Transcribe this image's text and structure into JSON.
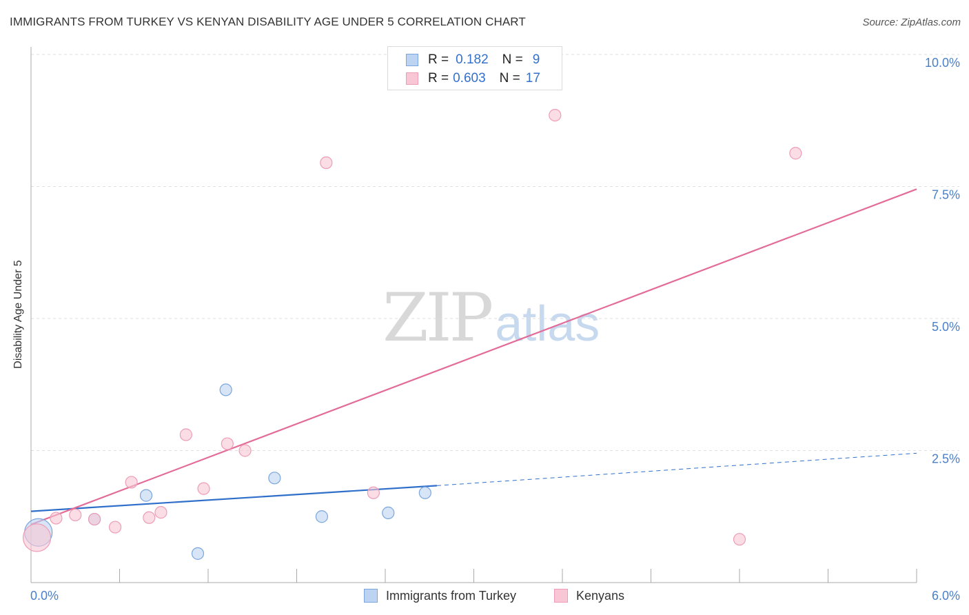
{
  "header": {
    "title": "IMMIGRANTS FROM TURKEY VS KENYAN DISABILITY AGE UNDER 5 CORRELATION CHART",
    "source": "Source: ZipAtlas.com"
  },
  "watermark": {
    "zip": "ZIP",
    "atlas": "atlas"
  },
  "legend_top": {
    "rows": [
      {
        "r_label": "R =",
        "r_value": "0.182",
        "n_label": "N =",
        "n_value": "9"
      },
      {
        "r_label": "R =",
        "r_value": "0.603",
        "n_label": "N =",
        "n_value": "17"
      }
    ]
  },
  "legend_bottom": {
    "items": [
      {
        "label": "Immigrants from Turkey"
      },
      {
        "label": "Kenyans"
      }
    ]
  },
  "colors": {
    "turkey_fill": "#bcd3f2",
    "turkey_stroke": "#7aa5dd",
    "turkey_line": "#2f6fca",
    "kenyan_fill": "#f8c6d4",
    "kenyan_stroke": "#ee9cb6",
    "kenyan_line": "#e36b98",
    "grid": "#dddddd",
    "tick_label": "#4a7fc8"
  },
  "chart_data": {
    "type": "scatter",
    "title": "IMMIGRANTS FROM TURKEY VS KENYAN DISABILITY AGE UNDER 5 CORRELATION CHART",
    "xlabel": "",
    "ylabel": "Disability Age Under 5",
    "xlim": [
      0,
      6.0
    ],
    "ylim": [
      0,
      10.0
    ],
    "x_tick_labels": [
      {
        "value": 0.0,
        "label": "0.0%"
      },
      {
        "value": 6.0,
        "label": "6.0%"
      }
    ],
    "y_tick_labels": [
      {
        "value": 2.5,
        "label": "2.5%"
      },
      {
        "value": 5.0,
        "label": "5.0%"
      },
      {
        "value": 7.5,
        "label": "7.5%"
      },
      {
        "value": 10.0,
        "label": "10.0%"
      }
    ],
    "grid": true,
    "legend_position": "top-center",
    "series": [
      {
        "name": "Immigrants from Turkey",
        "key": "turkey",
        "points": [
          {
            "x": 0.05,
            "y": 0.95,
            "size": "large"
          },
          {
            "x": 0.43,
            "y": 1.2
          },
          {
            "x": 0.78,
            "y": 1.65
          },
          {
            "x": 1.13,
            "y": 0.55
          },
          {
            "x": 1.32,
            "y": 3.65
          },
          {
            "x": 1.65,
            "y": 1.98
          },
          {
            "x": 1.97,
            "y": 1.25
          },
          {
            "x": 2.42,
            "y": 1.32
          },
          {
            "x": 2.67,
            "y": 1.7
          }
        ],
        "trend": {
          "x0": 0.0,
          "y0": 1.35,
          "x1": 3.0,
          "y1": 1.88,
          "dash_to_x": 6.0,
          "dash_to_y": 2.45
        }
      },
      {
        "name": "Kenyans",
        "key": "kenyan",
        "points": [
          {
            "x": 0.04,
            "y": 0.85,
            "size": "large"
          },
          {
            "x": 0.17,
            "y": 1.22
          },
          {
            "x": 0.3,
            "y": 1.28
          },
          {
            "x": 0.43,
            "y": 1.2
          },
          {
            "x": 0.57,
            "y": 1.05
          },
          {
            "x": 0.68,
            "y": 1.9
          },
          {
            "x": 0.8,
            "y": 1.23
          },
          {
            "x": 0.88,
            "y": 1.33
          },
          {
            "x": 1.05,
            "y": 2.8
          },
          {
            "x": 1.17,
            "y": 1.78
          },
          {
            "x": 1.33,
            "y": 2.63
          },
          {
            "x": 1.45,
            "y": 2.5
          },
          {
            "x": 2.0,
            "y": 7.95
          },
          {
            "x": 2.32,
            "y": 1.7
          },
          {
            "x": 3.55,
            "y": 8.85
          },
          {
            "x": 4.8,
            "y": 0.82
          },
          {
            "x": 5.18,
            "y": 8.13
          }
        ],
        "trend": {
          "x0": 0.0,
          "y0": 1.1,
          "x1": 6.0,
          "y1": 7.45
        }
      }
    ]
  }
}
